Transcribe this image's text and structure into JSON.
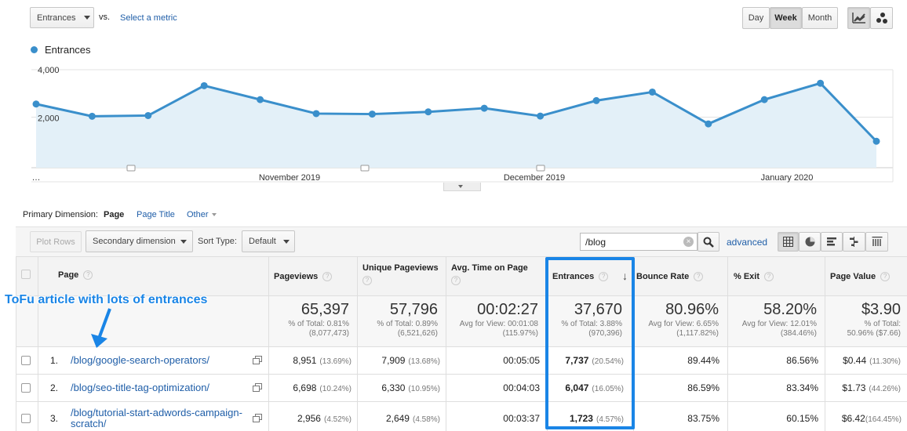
{
  "metric": {
    "selected": "Entrances",
    "vs": "vs.",
    "select_metric": "Select a metric"
  },
  "period": {
    "day": "Day",
    "week": "Week",
    "month": "Month",
    "active": "Week"
  },
  "chart_data": {
    "type": "area",
    "series": [
      {
        "name": "Entrances",
        "values": [
          2600,
          2100,
          2130,
          3350,
          2780,
          2210,
          2190,
          2280,
          2430,
          2110,
          2740,
          3090,
          1790,
          2780,
          3450,
          1080
        ]
      }
    ],
    "ylim": [
      0,
      4000
    ],
    "yticks": [
      "4,000",
      "2,000"
    ],
    "xticks": [
      "...",
      "November 2019",
      "December 2019",
      "January 2020"
    ],
    "grid": true,
    "legend": "top-left",
    "color": "#3a8fcb",
    "fill": "#e3f0f8"
  },
  "dimension": {
    "label": "Primary Dimension:",
    "page": "Page",
    "page_title": "Page Title",
    "other": "Other"
  },
  "toolbar": {
    "plot_rows": "Plot Rows",
    "secondary": "Secondary dimension",
    "sort_label": "Sort Type:",
    "sort_value": "Default",
    "search_value": "/blog",
    "advanced": "advanced"
  },
  "table": {
    "headers": [
      "Page",
      "Pageviews",
      "Unique Pageviews",
      "Avg. Time on Page",
      "Entrances",
      "Bounce Rate",
      "% Exit",
      "Page Value"
    ],
    "totals": [
      {
        "big": "65,397",
        "l1": "% of Total: 0.81%",
        "l2": "(8,077,473)"
      },
      {
        "big": "57,796",
        "l1": "% of Total: 0.89%",
        "l2": "(6,521,626)"
      },
      {
        "big": "00:02:27",
        "l1": "Avg for View: 00:01:08",
        "l2": "(115.97%)"
      },
      {
        "big": "37,670",
        "l1": "% of Total: 3.88%",
        "l2": "(970,396)"
      },
      {
        "big": "80.96%",
        "l1": "Avg for View: 6.65%",
        "l2": "(1,117.82%)"
      },
      {
        "big": "58.20%",
        "l1": "Avg for View: 12.01%",
        "l2": "(384.46%)"
      },
      {
        "big": "$3.90",
        "l1": "% of Total:",
        "l2": "50.96% ($7.66)"
      }
    ],
    "rows": [
      {
        "num": "1.",
        "page": "/blog/google-search-operators/",
        "pageviews": "8,951",
        "pv_pct": "(13.69%)",
        "unique": "7,909",
        "u_pct": "(13.68%)",
        "time": "00:05:05",
        "entrances": "7,737",
        "e_pct": "(20.54%)",
        "bounce": "89.44%",
        "exit": "86.56%",
        "value": "$0.44",
        "v_pct": "(11.30%)"
      },
      {
        "num": "2.",
        "page": "/blog/seo-title-tag-optimization/",
        "pageviews": "6,698",
        "pv_pct": "(10.24%)",
        "unique": "6,330",
        "u_pct": "(10.95%)",
        "time": "00:04:03",
        "entrances": "6,047",
        "e_pct": "(16.05%)",
        "bounce": "86.59%",
        "exit": "83.34%",
        "value": "$1.73",
        "v_pct": "(44.26%)"
      },
      {
        "num": "3.",
        "page": "/blog/tutorial-start-adwords-campaign-scratch/",
        "page_l1": "/blog/tutorial-start-adwords-campaign-",
        "page_l2": "scratch/",
        "pageviews": "2,956",
        "pv_pct": "(4.52%)",
        "unique": "2,649",
        "u_pct": "(4.58%)",
        "time": "00:03:37",
        "entrances": "1,723",
        "e_pct": "(4.57%)",
        "bounce": "83.75%",
        "exit": "60.15%",
        "value": "$6.42",
        "v_pct": "(164.45%)"
      }
    ]
  },
  "annotation": "ToFu article with lots of entrances"
}
